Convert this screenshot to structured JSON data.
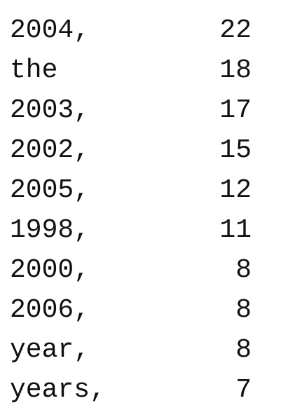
{
  "rows": [
    {
      "word": "2004,",
      "count": "22"
    },
    {
      "word": "the",
      "count": "18"
    },
    {
      "word": "2003,",
      "count": "17"
    },
    {
      "word": "2002,",
      "count": "15"
    },
    {
      "word": "2005,",
      "count": "12"
    },
    {
      "word": "1998,",
      "count": "11"
    },
    {
      "word": "2000,",
      "count": "8"
    },
    {
      "word": "2006,",
      "count": "8"
    },
    {
      "word": "year,",
      "count": "8"
    },
    {
      "word": "years,",
      "count": "7"
    }
  ]
}
